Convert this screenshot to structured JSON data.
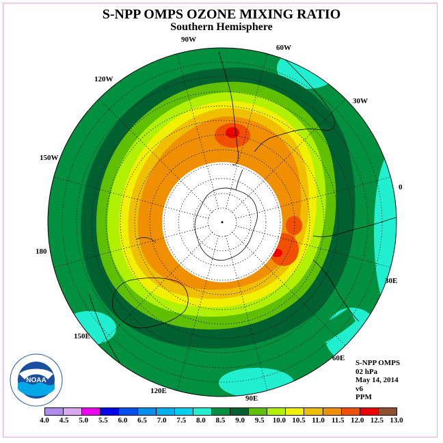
{
  "title": "S-NPP OMPS OZONE MIXING RATIO",
  "subtitle": "Southern Hemisphere",
  "longitude_labels": {
    "lon_90w": "90W",
    "lon_60w": "60W",
    "lon_120w": "120W",
    "lon_30w": "30W",
    "lon_150w": "150W",
    "lon_0": "0",
    "lon_180": "180",
    "lon_30e": "30E",
    "lon_150e": "150E",
    "lon_60e": "60E",
    "lon_120e": "120E",
    "lon_90e": "90E"
  },
  "info": {
    "instrument": "S-NPP OMPS",
    "pressure": "02 hPa",
    "date": "May 14, 2014",
    "version": "v6",
    "units": "PPM"
  },
  "logo_text": "NOAA",
  "colorbar": {
    "ticks": [
      "4.0",
      "4.5",
      "5.0",
      "5.5",
      "6.0",
      "6.5",
      "7.0",
      "7.5",
      "8.0",
      "8.5",
      "9.0",
      "9.5",
      "10.0",
      "10.5",
      "11.0",
      "11.5",
      "12.0",
      "12.5",
      "13.0"
    ],
    "colors": [
      "#b18cf0",
      "#d9a8f0",
      "#f000f0",
      "#0000f0",
      "#0050f0",
      "#0090f0",
      "#00b0f0",
      "#00d0f0",
      "#20f0d0",
      "#009040",
      "#006030",
      "#60c000",
      "#b0f000",
      "#f0f000",
      "#f0c000",
      "#f09000",
      "#f05000",
      "#f00000",
      "#905030"
    ]
  },
  "ozone_field": {
    "units": "PPM",
    "pressure_level": "02 hPa",
    "bands": [
      {
        "range": [
          8.0,
          8.5
        ],
        "color": "#20f0d0"
      },
      {
        "range": [
          8.5,
          9.0
        ],
        "color": "#009040"
      },
      {
        "range": [
          9.0,
          9.5
        ],
        "color": "#006030"
      },
      {
        "range": [
          9.5,
          10.0
        ],
        "color": "#60c000"
      },
      {
        "range": [
          10.0,
          10.5
        ],
        "color": "#b0f000"
      },
      {
        "range": [
          10.5,
          11.0
        ],
        "color": "#f0f000"
      },
      {
        "range": [
          11.0,
          11.5
        ],
        "color": "#f0c000"
      },
      {
        "range": [
          11.5,
          12.0
        ],
        "color": "#f09000"
      },
      {
        "range": [
          12.0,
          12.5
        ],
        "color": "#f05000"
      },
      {
        "range": [
          12.5,
          13.0
        ],
        "color": "#f00000"
      }
    ]
  }
}
